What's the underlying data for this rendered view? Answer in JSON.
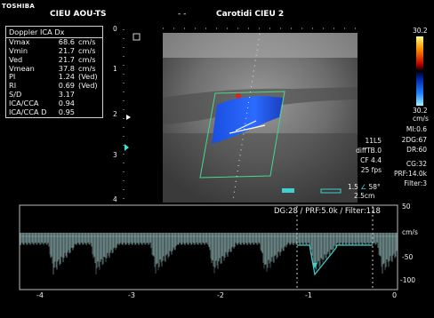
{
  "header": {
    "logo": "TOSHIBA",
    "site": "CIEU AOU-TS",
    "separator": "- -",
    "exam": "Carotidi CIEU 2"
  },
  "measurements": {
    "title": "Doppler ICA Dx",
    "rows": [
      {
        "label": "Vmax",
        "value": "68.6",
        "unit": "cm/s"
      },
      {
        "label": "Vmin",
        "value": "21.7",
        "unit": "cm/s"
      },
      {
        "label": "Ved",
        "value": "21.7",
        "unit": "cm/s"
      },
      {
        "label": "Vmean",
        "value": "37.8",
        "unit": "cm/s"
      },
      {
        "label": "PI",
        "value": "1.24",
        "unit": "(Ved)"
      },
      {
        "label": "RI",
        "value": "0.69",
        "unit": "(Ved)"
      },
      {
        "label": "S/D",
        "value": "3.17",
        "unit": ""
      },
      {
        "label": "ICA/CCA",
        "value": "0.94",
        "unit": ""
      },
      {
        "label": "ICA/CCA D",
        "value": "0.95",
        "unit": ""
      }
    ]
  },
  "depth_scale": [
    "0",
    "1",
    "2",
    "3",
    "4"
  ],
  "color_bar": {
    "top": "30.2",
    "bottom": "30.2",
    "unit": "cm/s"
  },
  "params_right": [
    "MI:0.6",
    "2DG:67",
    "DR:60",
    "CG:32",
    "PRF:14.0k",
    "Filter:3"
  ],
  "params_center": [
    "11L5",
    "diffTB.0",
    "CF 4.4",
    "25 fps"
  ],
  "angle": {
    "value": "1.5",
    "angle_text": "58°",
    "depth": "2.5cm"
  },
  "doppler": {
    "settings": "DG:28 /   PRF:5.0k  / Filter:118",
    "vel_labels": [
      "50",
      "cm/s",
      "-50",
      "-100"
    ],
    "time_labels": [
      "-4",
      "-3",
      "-2",
      "-1",
      "0"
    ]
  },
  "colors": {
    "tissue": "#8e8e8e",
    "flow_blue": "#1f5cff",
    "trace": "#3fd0d0",
    "roi": "#48d890"
  }
}
